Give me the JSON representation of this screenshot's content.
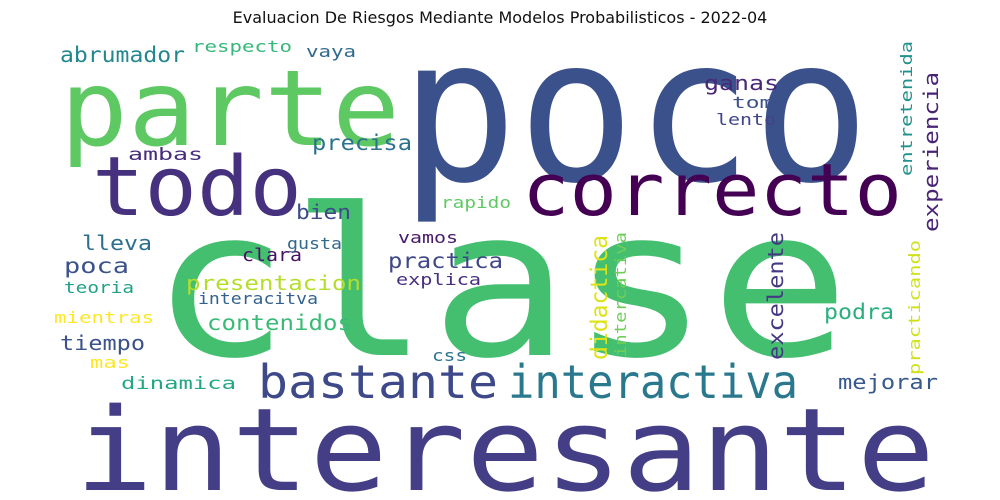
{
  "title": "Evaluacion De Riesgos Mediante Modelos Probabilisticos - 2022-04",
  "chart_data": {
    "type": "wordcloud",
    "title": "Evaluacion De Riesgos Mediante Modelos Probabilisticos - 2022-04",
    "colormap": "viridis",
    "words": [
      {
        "text": "clase",
        "color": "#44bf70"
      },
      {
        "text": "poco",
        "color": "#3b518b"
      },
      {
        "text": "interesante",
        "color": "#433e85"
      },
      {
        "text": "parte",
        "color": "#5ec962"
      },
      {
        "text": "todo",
        "color": "#46317e"
      },
      {
        "text": "correcto",
        "color": "#440154"
      },
      {
        "text": "bastante",
        "color": "#3e4989"
      },
      {
        "text": "interactiva",
        "color": "#2a788e"
      },
      {
        "text": "experiencia",
        "color": "#482475"
      },
      {
        "text": "abrumador",
        "color": "#23888e"
      },
      {
        "text": "respecto",
        "color": "#35b779"
      },
      {
        "text": "vaya",
        "color": "#31688e"
      },
      {
        "text": "entretenida",
        "color": "#21918c"
      },
      {
        "text": "ganas",
        "color": "#482878"
      },
      {
        "text": "toma",
        "color": "#3b528b"
      },
      {
        "text": "lento",
        "color": "#414487"
      },
      {
        "text": "precisa",
        "color": "#2c728e"
      },
      {
        "text": "ambas",
        "color": "#472d7b"
      },
      {
        "text": "bien",
        "color": "#3e4a89"
      },
      {
        "text": "rapido",
        "color": "#5ec962"
      },
      {
        "text": "lleva",
        "color": "#2d708e"
      },
      {
        "text": "clara",
        "color": "#471063"
      },
      {
        "text": "gusta",
        "color": "#31688e"
      },
      {
        "text": "vamos",
        "color": "#48186a"
      },
      {
        "text": "practica",
        "color": "#3f4788"
      },
      {
        "text": "didactica",
        "color": "#dde318"
      },
      {
        "text": "intercativa",
        "color": "#6ece58"
      },
      {
        "text": "excelente",
        "color": "#443983"
      },
      {
        "text": "practicando",
        "color": "#d0e11c"
      },
      {
        "text": "poca",
        "color": "#3b528b"
      },
      {
        "text": "presentacion",
        "color": "#b5de2b"
      },
      {
        "text": "explica",
        "color": "#472f7d"
      },
      {
        "text": "teoria",
        "color": "#1fa188"
      },
      {
        "text": "interacitva",
        "color": "#33638d"
      },
      {
        "text": "contenidos",
        "color": "#3aba76"
      },
      {
        "text": "podra",
        "color": "#2ab07f"
      },
      {
        "text": "mientras",
        "color": "#fde725"
      },
      {
        "text": "tiempo",
        "color": "#3b528b"
      },
      {
        "text": "mas",
        "color": "#fde725"
      },
      {
        "text": "css",
        "color": "#2c738e"
      },
      {
        "text": "dinamica",
        "color": "#22a785"
      },
      {
        "text": "mejorar",
        "color": "#38598c"
      }
    ]
  }
}
